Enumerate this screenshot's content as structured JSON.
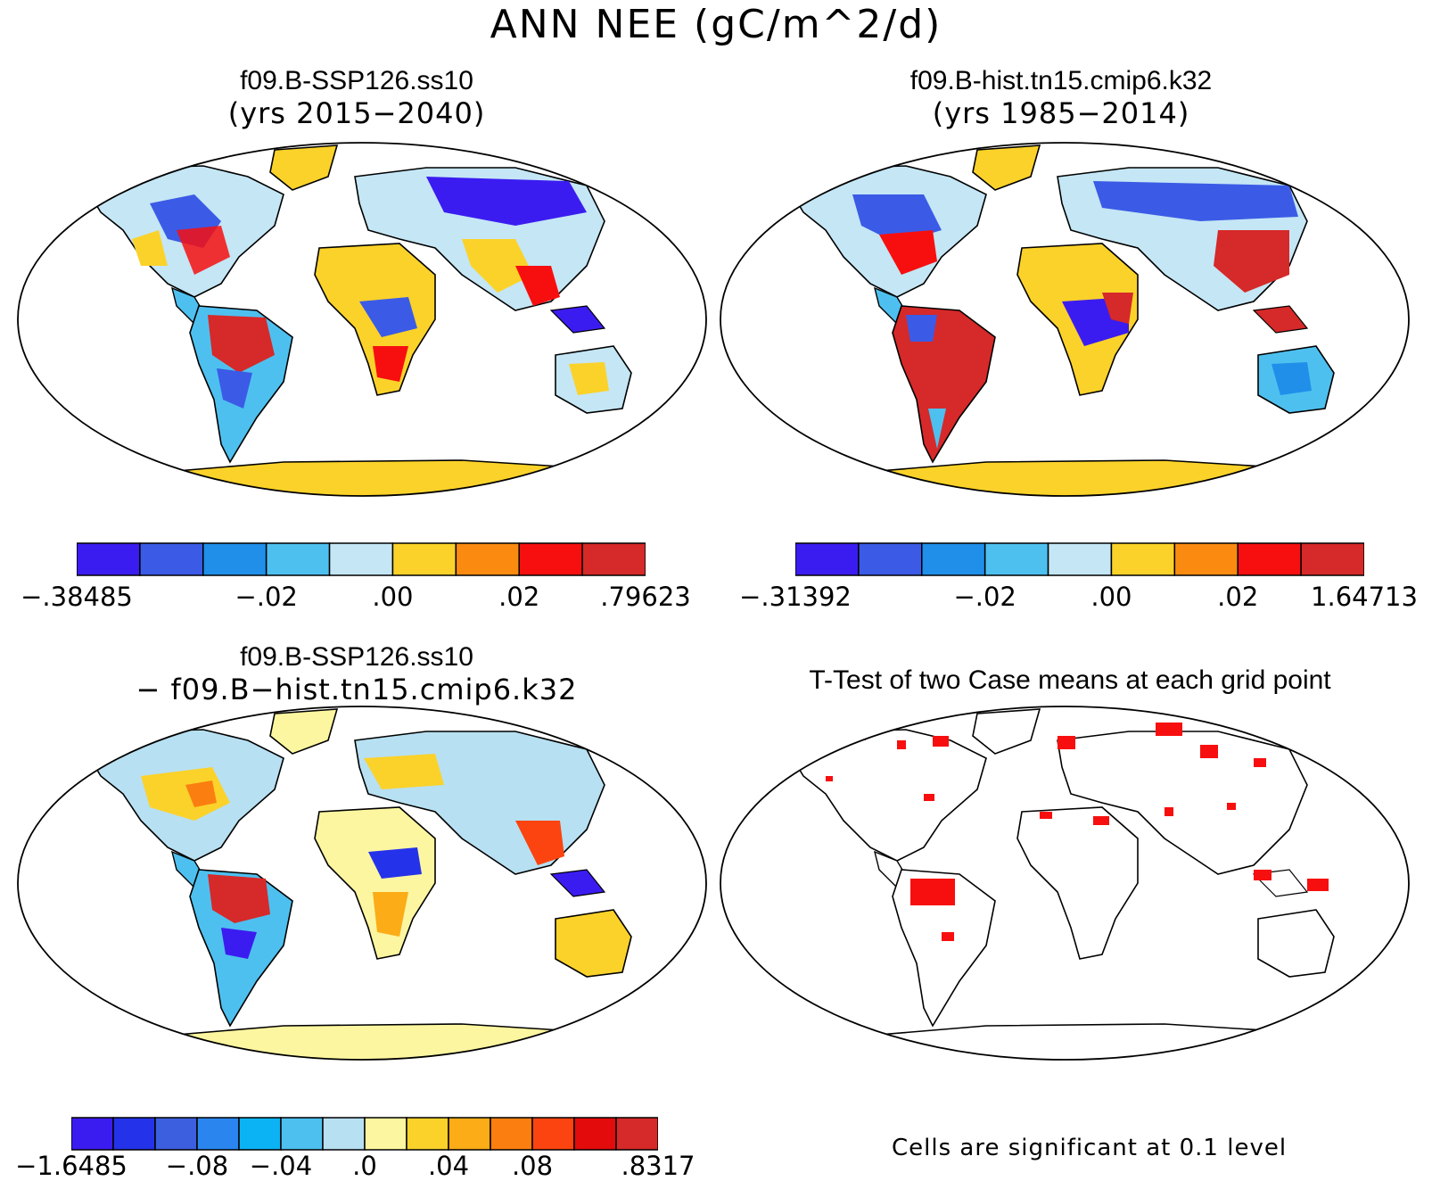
{
  "figure": {
    "title": "ANN NEE (gC/m^2/d)"
  },
  "panels": [
    {
      "id": "case1",
      "title_line1": "f09.B-SSP126.ss10",
      "title_line2": "(yrs 2015−2040)",
      "colorbar": {
        "colors": [
          "#3b1cf0",
          "#3b5be6",
          "#1f8fea",
          "#4ec0ef",
          "#c4e6f5",
          "#fbd22a",
          "#fb8a10",
          "#f70f0f",
          "#d62929"
        ],
        "labels": [
          {
            "text": "−.38485",
            "edge": 0
          },
          {
            "text": "−.02",
            "edge": 3
          },
          {
            "text": ".00",
            "edge": 5
          },
          {
            "text": ".02",
            "edge": 7
          },
          {
            "text": ".79623",
            "edge": 9
          }
        ]
      }
    },
    {
      "id": "case2",
      "title_line1": "f09.B-hist.tn15.cmip6.k32",
      "title_line2": "(yrs 1985−2014)",
      "colorbar": {
        "colors": [
          "#3b1cf0",
          "#3b5be6",
          "#1f8fea",
          "#4ec0ef",
          "#c4e6f5",
          "#fbd22a",
          "#fb8a10",
          "#f70f0f",
          "#d62929"
        ],
        "labels": [
          {
            "text": "−.31392",
            "edge": 0
          },
          {
            "text": "−.02",
            "edge": 3
          },
          {
            "text": ".00",
            "edge": 5
          },
          {
            "text": ".02",
            "edge": 7
          },
          {
            "text": "1.64713",
            "edge": 9
          }
        ]
      }
    },
    {
      "id": "diff",
      "title_line1": "f09.B-SSP126.ss10",
      "title_line2": "− f09.B−hist.tn15.cmip6.k32",
      "colorbar": {
        "colors": [
          "#3b1cf0",
          "#2433ea",
          "#3c5fdf",
          "#2a86ee",
          "#0bb3f4",
          "#4ec0ef",
          "#b7e0f2",
          "#fdf6a0",
          "#fbd22a",
          "#fbac16",
          "#fb7f10",
          "#fb4410",
          "#e30b0b",
          "#d62929"
        ],
        "labels": [
          {
            "text": "−1.6485",
            "edge": 0
          },
          {
            "text": "−.08",
            "edge": 3
          },
          {
            "text": "−.04",
            "edge": 5
          },
          {
            "text": ".0",
            "edge": 7
          },
          {
            "text": ".04",
            "edge": 9
          },
          {
            "text": ".08",
            "edge": 11
          },
          {
            "text": ".8317",
            "edge": 14
          }
        ]
      }
    },
    {
      "id": "ttest",
      "title_line1": "T-Test of two Case means at each grid point",
      "note": "Cells are significant at 0.1 level"
    }
  ]
}
